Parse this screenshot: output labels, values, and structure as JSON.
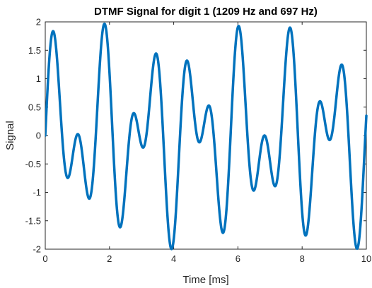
{
  "chart_data": {
    "type": "line",
    "title": "DTMF Signal for digit 1 (1209 Hz and 697 Hz)",
    "xlabel": "Time [ms]",
    "ylabel": "Signal",
    "xlim": [
      0,
      10
    ],
    "ylim": [
      -2,
      2
    ],
    "x_ticks": [
      0,
      2,
      4,
      6,
      8,
      10
    ],
    "x_tick_labels": [
      "0",
      "2",
      "4",
      "6",
      "8",
      "10"
    ],
    "y_ticks": [
      -2,
      -1.5,
      -1,
      -0.5,
      0,
      0.5,
      1,
      1.5,
      2
    ],
    "y_tick_labels": [
      "-2",
      "-1.5",
      "-1",
      "-0.5",
      "0",
      "0.5",
      "1",
      "1.5",
      "2"
    ],
    "grid": false,
    "series": [
      {
        "color": "#0072BD",
        "formula": "sin(2*pi*697*t) + sin(2*pi*1209*t)",
        "components_hz": [
          1209,
          697
        ],
        "x_start": 0,
        "x_end": 10
      }
    ]
  }
}
